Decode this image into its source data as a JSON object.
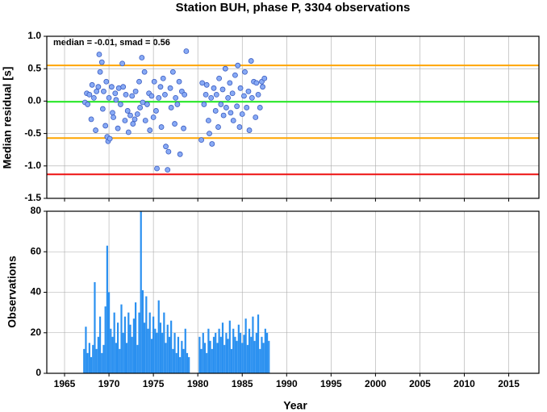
{
  "chart_data": [
    {
      "type": "scatter",
      "title": "Station BUH, phase P, 3304 observations",
      "y_label": "Median residual [s]",
      "annotation": "median = -0.01, smad = 0.56",
      "color": "#88aaf5",
      "edge_color": "#3a5cc0",
      "xlim": [
        1963,
        2018.4
      ],
      "xticks": [
        1965,
        1970,
        1975,
        1980,
        1985,
        1990,
        1995,
        2000,
        2005,
        2010,
        2015
      ],
      "ylim": [
        -1.5,
        1.0
      ],
      "yticks": [
        {
          "value": -1.5,
          "label": "-1.5"
        },
        {
          "value": -1.0,
          "label": "-1.0"
        },
        {
          "value": -0.5,
          "label": "-0.5"
        },
        {
          "value": 0.0,
          "label": "0.0"
        },
        {
          "value": 0.5,
          "label": "0.5"
        },
        {
          "value": 1.0,
          "label": "1.0"
        }
      ],
      "grid": true,
      "reference_lines": [
        {
          "value": 0.55,
          "color": "#ffa500"
        },
        {
          "value": -0.01,
          "color": "#22ee22"
        },
        {
          "value": -0.57,
          "color": "#ffa500"
        },
        {
          "value": -1.13,
          "color": "#ee1111"
        }
      ],
      "x": [
        1967.3,
        1967.5,
        1967.6,
        1967.8,
        1968.0,
        1968.1,
        1968.3,
        1968.5,
        1968.6,
        1968.8,
        1968.9,
        1969.0,
        1969.2,
        1969.3,
        1969.4,
        1969.6,
        1969.7,
        1969.8,
        1969.9,
        1970.0,
        1970.1,
        1970.3,
        1970.4,
        1970.5,
        1970.7,
        1970.8,
        1971.0,
        1971.1,
        1971.3,
        1971.5,
        1971.6,
        1971.8,
        1971.9,
        1972.1,
        1972.2,
        1972.4,
        1972.6,
        1972.7,
        1972.9,
        1973.0,
        1973.2,
        1973.4,
        1973.5,
        1973.7,
        1973.8,
        1974.0,
        1974.1,
        1974.3,
        1974.5,
        1974.6,
        1974.8,
        1975.0,
        1975.1,
        1975.3,
        1975.4,
        1975.6,
        1975.8,
        1975.9,
        1976.1,
        1976.3,
        1976.4,
        1976.6,
        1976.7,
        1976.9,
        1977.0,
        1977.2,
        1977.4,
        1977.5,
        1977.7,
        1977.9,
        1978.0,
        1978.2,
        1978.4,
        1978.5,
        1978.7,
        1980.4,
        1980.5,
        1980.7,
        1980.9,
        1981.0,
        1981.2,
        1981.3,
        1981.5,
        1981.6,
        1981.8,
        1982.0,
        1982.1,
        1982.3,
        1982.4,
        1982.6,
        1982.8,
        1982.9,
        1983.1,
        1983.2,
        1983.4,
        1983.6,
        1983.7,
        1983.9,
        1984.0,
        1984.2,
        1984.4,
        1984.5,
        1984.7,
        1984.8,
        1985.0,
        1985.2,
        1985.3,
        1985.5,
        1985.7,
        1985.8,
        1986.0,
        1986.1,
        1986.3,
        1986.5,
        1986.6,
        1986.8,
        1987.0,
        1987.2,
        1987.3,
        1987.5
      ],
      "values": [
        -0.02,
        0.12,
        -0.05,
        0.1,
        -0.28,
        0.25,
        0.05,
        -0.45,
        0.15,
        0.22,
        0.72,
        0.45,
        0.6,
        -0.12,
        0.15,
        -0.38,
        0.3,
        -0.55,
        -0.62,
        0.05,
        -0.58,
        0.22,
        -0.18,
        -0.25,
        0.12,
        0.02,
        -0.42,
        0.2,
        -0.05,
        0.58,
        0.22,
        -0.3,
        0.1,
        -0.15,
        -0.48,
        -0.22,
        0.08,
        -0.35,
        -0.28,
        0.15,
        -0.2,
        0.3,
        -0.1,
        0.67,
        -0.02,
        0.45,
        -0.3,
        -0.05,
        0.12,
        -0.45,
        0.08,
        -0.25,
        0.3,
        -0.15,
        -1.04,
        0.05,
        0.22,
        -0.4,
        0.35,
        0.1,
        -0.7,
        -1.06,
        -0.78,
        0.2,
        -0.1,
        0.45,
        -0.35,
        0.05,
        -0.05,
        0.3,
        -0.82,
        0.15,
        -0.42,
        0.1,
        0.77,
        -0.6,
        0.28,
        -0.05,
        0.1,
        0.25,
        -0.3,
        -0.5,
        0.05,
        -0.66,
        0.2,
        -0.15,
        0.1,
        -0.4,
        0.35,
        -0.05,
        0.18,
        -0.22,
        0.5,
        -0.1,
        0.05,
        0.28,
        -0.18,
        0.12,
        -0.3,
        0.4,
        -0.08,
        0.55,
        -0.4,
        0.2,
        -0.2,
        0.08,
        0.45,
        -0.1,
        0.15,
        -0.45,
        0.62,
        0.05,
        0.3,
        -0.25,
        0.28,
        0.1,
        -0.1,
        0.3,
        0.22,
        0.35
      ]
    },
    {
      "type": "bar",
      "y_label": "Observations",
      "x_label": "Year",
      "color": "#2a90f0",
      "xlim": [
        1963,
        2018.4
      ],
      "xticks": [
        1965,
        1970,
        1975,
        1980,
        1985,
        1990,
        1995,
        2000,
        2005,
        2010,
        2015
      ],
      "ylim": [
        0,
        80
      ],
      "yticks": [
        0,
        20,
        40,
        60,
        80
      ],
      "grid": true,
      "x": [
        1967.2,
        1967.4,
        1967.6,
        1967.8,
        1968.0,
        1968.2,
        1968.4,
        1968.6,
        1968.8,
        1969.0,
        1969.2,
        1969.4,
        1969.6,
        1969.8,
        1970.0,
        1970.2,
        1970.4,
        1970.6,
        1970.8,
        1971.0,
        1971.2,
        1971.4,
        1971.6,
        1971.8,
        1972.0,
        1972.2,
        1972.4,
        1972.6,
        1972.8,
        1973.0,
        1973.2,
        1973.4,
        1973.6,
        1973.8,
        1974.0,
        1974.2,
        1974.4,
        1974.6,
        1974.8,
        1975.0,
        1975.2,
        1975.4,
        1975.6,
        1975.8,
        1976.0,
        1976.2,
        1976.4,
        1976.6,
        1976.8,
        1977.0,
        1977.2,
        1977.4,
        1977.6,
        1977.8,
        1978.0,
        1978.2,
        1978.4,
        1978.6,
        1978.8,
        1979.0,
        1980.2,
        1980.4,
        1980.6,
        1980.8,
        1981.0,
        1981.2,
        1981.4,
        1981.6,
        1981.8,
        1982.0,
        1982.2,
        1982.4,
        1982.6,
        1982.8,
        1983.0,
        1983.2,
        1983.4,
        1983.6,
        1983.8,
        1984.0,
        1984.2,
        1984.4,
        1984.6,
        1984.8,
        1985.0,
        1985.2,
        1985.4,
        1985.6,
        1985.8,
        1986.0,
        1986.2,
        1986.4,
        1986.6,
        1986.8,
        1987.0,
        1987.2,
        1987.4,
        1987.6,
        1987.8,
        1988.0
      ],
      "values": [
        12,
        23,
        10,
        15,
        8,
        14,
        45,
        12,
        18,
        28,
        10,
        14,
        33,
        63,
        40,
        22,
        18,
        30,
        15,
        25,
        12,
        34,
        20,
        28,
        15,
        30,
        24,
        18,
        27,
        35,
        14,
        30,
        80,
        41,
        25,
        38,
        22,
        30,
        17,
        28,
        22,
        20,
        36,
        25,
        20,
        30,
        15,
        24,
        18,
        26,
        12,
        20,
        10,
        18,
        8,
        16,
        12,
        22,
        10,
        8,
        18,
        12,
        20,
        15,
        10,
        22,
        16,
        12,
        18,
        20,
        15,
        22,
        18,
        25,
        14,
        20,
        17,
        26,
        12,
        22,
        18,
        16,
        24,
        20,
        15,
        19,
        27,
        14,
        22,
        18,
        28,
        16,
        20,
        29,
        12,
        18,
        15,
        22,
        20,
        16
      ]
    }
  ]
}
